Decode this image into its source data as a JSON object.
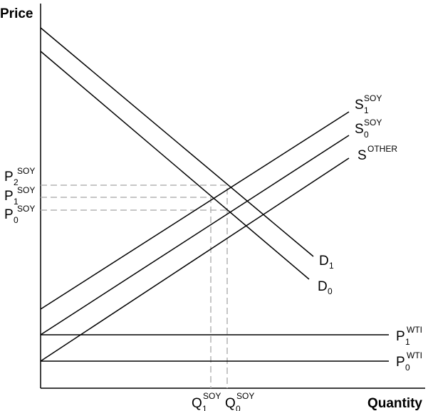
{
  "axes": {
    "y_title": "Price",
    "x_title": "Quantity"
  },
  "lines": {
    "d1": {
      "main": "D",
      "sub": "1"
    },
    "d0": {
      "main": "D",
      "sub": "0"
    },
    "s1_soy": {
      "main": "S",
      "sub_low": "1",
      "sup": "SOY"
    },
    "s0_soy": {
      "main": "S",
      "sub_low": "0",
      "sup": "SOY"
    },
    "s_other": {
      "main": "S",
      "sup": "OTHER"
    },
    "p1_wti": {
      "main": "P",
      "sub_low": "1",
      "sup": "WTI"
    },
    "p0_wti": {
      "main": "P",
      "sub_low": "0",
      "sup": "WTI"
    }
  },
  "price_labels": {
    "p2_soy": {
      "main": "P",
      "sub_low": "2",
      "sup": "SOY"
    },
    "p1_soy": {
      "main": "P",
      "sub_low": "1",
      "sup": "SOY"
    },
    "p0_soy": {
      "main": "P",
      "sub_low": "0",
      "sup": "SOY"
    }
  },
  "quantity_labels": {
    "q1_soy": {
      "main": "Q",
      "sub_low": "1",
      "sup": "SOY"
    },
    "q0_soy": {
      "main": "Q",
      "sub_low": "0",
      "sup": "SOY"
    }
  }
}
